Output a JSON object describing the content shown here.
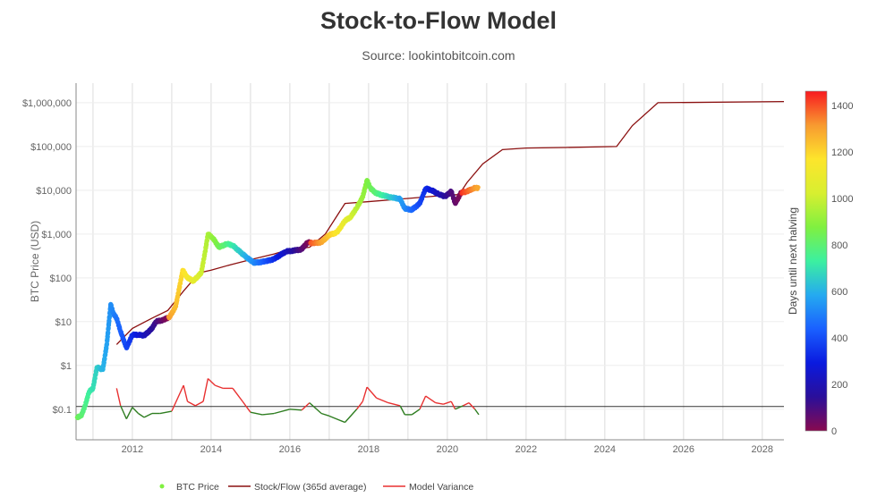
{
  "chart_data": {
    "type": "scatter",
    "title": "Stock-to-Flow Model",
    "subtitle": "Source: lookintobitcoin.com",
    "ylabel": "BTC Price (USD)",
    "xlabel": "",
    "y_scale": "log",
    "ylim": [
      0.02,
      2800000
    ],
    "xlim": [
      2010.57,
      2028.55
    ],
    "grid": true,
    "x_ticks": [
      "2012",
      "2014",
      "2016",
      "2018",
      "2020",
      "2022",
      "2024",
      "2026",
      "2028"
    ],
    "y_ticks": [
      {
        "v": 1000000,
        "label": "$1,000,000"
      },
      {
        "v": 100000,
        "label": "$100,000"
      },
      {
        "v": 10000,
        "label": "$10,000"
      },
      {
        "v": 1000,
        "label": "$1,000"
      },
      {
        "v": 100,
        "label": "$100"
      },
      {
        "v": 10,
        "label": "$10"
      },
      {
        "v": 1,
        "label": "$1"
      },
      {
        "v": 0.1,
        "label": "$0.1"
      }
    ],
    "colorbar": {
      "title": "Days until next halving",
      "range": [
        0,
        1461
      ],
      "ticks": [
        "0",
        "200",
        "400",
        "600",
        "800",
        "1000",
        "1200",
        "1400"
      ],
      "colors": [
        "#880a4f",
        "#2a0f9a",
        "#0a1adf",
        "#1a60ff",
        "#25aaf0",
        "#3cf0a0",
        "#80f040",
        "#d8ef30",
        "#fde52c",
        "#f89a30",
        "#f81a20"
      ]
    },
    "legend_position": "bottom",
    "series": [
      {
        "name": "BTC Price",
        "kind": "markers",
        "points": [
          [
            2010.6,
            0.065
          ],
          [
            2010.7,
            0.07
          ],
          [
            2010.8,
            0.12
          ],
          [
            2010.9,
            0.25
          ],
          [
            2011.0,
            0.3
          ],
          [
            2011.1,
            0.9
          ],
          [
            2011.25,
            0.8
          ],
          [
            2011.35,
            3
          ],
          [
            2011.45,
            25
          ],
          [
            2011.52,
            15
          ],
          [
            2011.6,
            12
          ],
          [
            2011.7,
            6
          ],
          [
            2011.85,
            2.5
          ],
          [
            2012.0,
            5
          ],
          [
            2012.15,
            5
          ],
          [
            2012.3,
            4.8
          ],
          [
            2012.5,
            7
          ],
          [
            2012.6,
            10
          ],
          [
            2012.8,
            11
          ],
          [
            2012.95,
            13
          ],
          [
            2013.1,
            22
          ],
          [
            2013.28,
            150
          ],
          [
            2013.4,
            100
          ],
          [
            2013.55,
            85
          ],
          [
            2013.75,
            130
          ],
          [
            2013.85,
            400
          ],
          [
            2013.92,
            1000
          ],
          [
            2014.05,
            800
          ],
          [
            2014.2,
            500
          ],
          [
            2014.4,
            600
          ],
          [
            2014.55,
            550
          ],
          [
            2014.8,
            350
          ],
          [
            2015.0,
            250
          ],
          [
            2015.1,
            220
          ],
          [
            2015.4,
            240
          ],
          [
            2015.6,
            270
          ],
          [
            2015.9,
            400
          ],
          [
            2016.1,
            420
          ],
          [
            2016.3,
            450
          ],
          [
            2016.45,
            650
          ],
          [
            2016.6,
            620
          ],
          [
            2016.8,
            650
          ],
          [
            2017.0,
            950
          ],
          [
            2017.2,
            1100
          ],
          [
            2017.4,
            2000
          ],
          [
            2017.55,
            2500
          ],
          [
            2017.7,
            4000
          ],
          [
            2017.85,
            7000
          ],
          [
            2017.96,
            17000
          ],
          [
            2018.05,
            11000
          ],
          [
            2018.2,
            8500
          ],
          [
            2018.4,
            7500
          ],
          [
            2018.6,
            6800
          ],
          [
            2018.8,
            6400
          ],
          [
            2018.92,
            3800
          ],
          [
            2019.1,
            3600
          ],
          [
            2019.3,
            5000
          ],
          [
            2019.45,
            11000
          ],
          [
            2019.6,
            10000
          ],
          [
            2019.8,
            8000
          ],
          [
            2019.95,
            7200
          ],
          [
            2020.1,
            9500
          ],
          [
            2020.2,
            5000
          ],
          [
            2020.35,
            8800
          ],
          [
            2020.5,
            9400
          ],
          [
            2020.65,
            11000
          ],
          [
            2020.8,
            11500
          ]
        ]
      },
      {
        "name": "Stock/Flow (365d average)",
        "kind": "line",
        "color": "#8b1010",
        "points": [
          [
            2011.6,
            3
          ],
          [
            2012.0,
            7
          ],
          [
            2012.5,
            12
          ],
          [
            2012.9,
            18
          ],
          [
            2013.3,
            50
          ],
          [
            2013.7,
            130
          ],
          [
            2014.0,
            150
          ],
          [
            2014.5,
            200
          ],
          [
            2015.0,
            260
          ],
          [
            2015.6,
            350
          ],
          [
            2016.0,
            450
          ],
          [
            2016.5,
            500
          ],
          [
            2016.9,
            1000
          ],
          [
            2017.4,
            5000
          ],
          [
            2018.0,
            5500
          ],
          [
            2019.0,
            6500
          ],
          [
            2019.8,
            7500
          ],
          [
            2020.3,
            8000
          ],
          [
            2020.5,
            15000
          ],
          [
            2020.9,
            40000
          ],
          [
            2021.4,
            85000
          ],
          [
            2022.0,
            92000
          ],
          [
            2023.0,
            95000
          ],
          [
            2024.3,
            100000
          ],
          [
            2024.7,
            300000
          ],
          [
            2025.35,
            1000000
          ],
          [
            2028.55,
            1060000
          ]
        ]
      },
      {
        "name": "Model Variance",
        "kind": "line",
        "color": "#e83030",
        "negative_color": "#2e7d20",
        "baseline": 0.115,
        "points": [
          [
            2011.6,
            0.3
          ],
          [
            2011.7,
            0.12
          ],
          [
            2011.85,
            0.06
          ],
          [
            2012.0,
            0.11
          ],
          [
            2012.15,
            0.08
          ],
          [
            2012.3,
            0.065
          ],
          [
            2012.5,
            0.08
          ],
          [
            2012.7,
            0.08
          ],
          [
            2013.0,
            0.09
          ],
          [
            2013.3,
            0.35
          ],
          [
            2013.4,
            0.15
          ],
          [
            2013.6,
            0.12
          ],
          [
            2013.8,
            0.15
          ],
          [
            2013.92,
            0.5
          ],
          [
            2014.1,
            0.35
          ],
          [
            2014.3,
            0.3
          ],
          [
            2014.55,
            0.3
          ],
          [
            2014.8,
            0.15
          ],
          [
            2015.0,
            0.085
          ],
          [
            2015.3,
            0.075
          ],
          [
            2015.6,
            0.08
          ],
          [
            2016.0,
            0.1
          ],
          [
            2016.3,
            0.095
          ],
          [
            2016.5,
            0.14
          ],
          [
            2016.8,
            0.08
          ],
          [
            2017.0,
            0.07
          ],
          [
            2017.4,
            0.05
          ],
          [
            2017.7,
            0.1
          ],
          [
            2017.85,
            0.15
          ],
          [
            2017.96,
            0.32
          ],
          [
            2018.2,
            0.18
          ],
          [
            2018.5,
            0.14
          ],
          [
            2018.8,
            0.12
          ],
          [
            2018.92,
            0.075
          ],
          [
            2019.1,
            0.075
          ],
          [
            2019.3,
            0.1
          ],
          [
            2019.45,
            0.2
          ],
          [
            2019.7,
            0.14
          ],
          [
            2019.9,
            0.13
          ],
          [
            2020.1,
            0.15
          ],
          [
            2020.2,
            0.1
          ],
          [
            2020.4,
            0.12
          ],
          [
            2020.55,
            0.14
          ],
          [
            2020.7,
            0.1
          ],
          [
            2020.8,
            0.075
          ]
        ]
      }
    ],
    "legend": [
      "BTC Price",
      "Stock/Flow (365d average)",
      "Model Variance"
    ]
  }
}
